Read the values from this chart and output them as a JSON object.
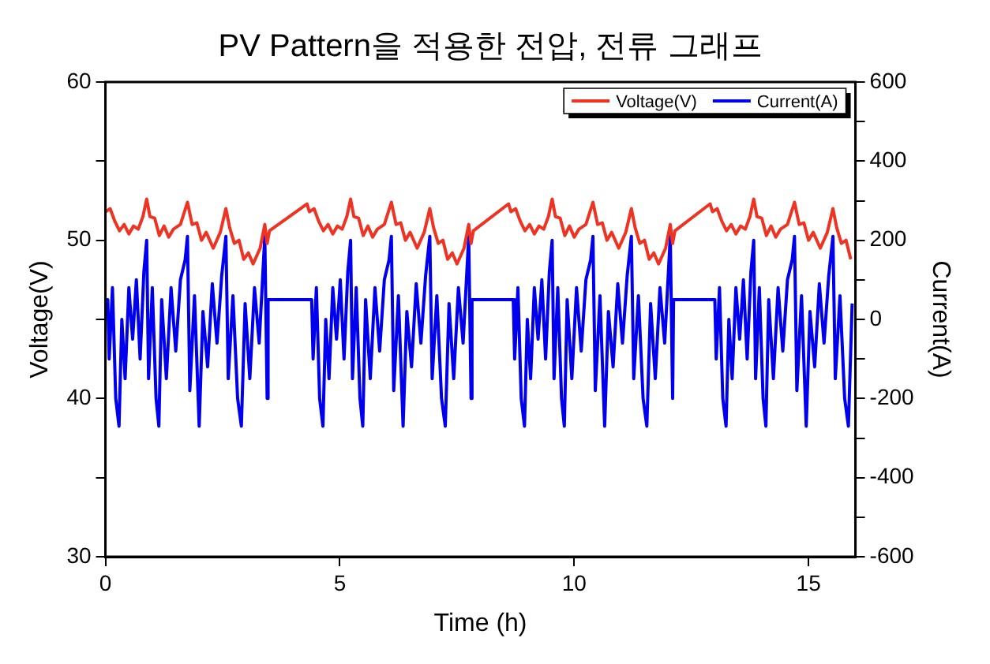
{
  "chart_data": {
    "type": "line",
    "title": "PV Pattern을 적용한 전압, 전류 그래프",
    "xlabel": "Time (h)",
    "ylabel": "Voltage(V)",
    "y2label": "Current(A)",
    "xlim": [
      0,
      16
    ],
    "xticks": [
      0,
      5,
      10,
      15
    ],
    "ylim": [
      30,
      60
    ],
    "yticks": [
      30,
      {
        "value": 35,
        "label": null
      },
      40,
      {
        "value": 45,
        "label": null
      },
      50,
      {
        "value": 55,
        "label": null
      },
      60
    ],
    "y2lim": [
      -600,
      600
    ],
    "y2ticks": [
      -600,
      {
        "value": -500,
        "label": null
      },
      -400,
      {
        "value": -300,
        "label": null
      },
      -200,
      {
        "value": -100,
        "label": null
      },
      0,
      {
        "value": 100,
        "label": null
      },
      200,
      {
        "value": 300,
        "label": null
      },
      400,
      {
        "value": 500,
        "label": null
      },
      600
    ],
    "grid": false,
    "legend": "top right",
    "marker": "none",
    "line_style": "solid",
    "series": [
      {
        "name": "Voltage(V)",
        "color": "#ee3322",
        "x": [
          0,
          0.1,
          0.2,
          0.3,
          0.4,
          0.5,
          0.6,
          0.7,
          0.8,
          0.88,
          0.95,
          1.05,
          1.15,
          1.25,
          1.35,
          1.45,
          1.6,
          1.75,
          1.85,
          1.95,
          2.05,
          2.15,
          2.3,
          2.45,
          2.57,
          2.65,
          2.75,
          2.85,
          2.95,
          3.05,
          3.15,
          3.3,
          3.4,
          3.45,
          3.5,
          4.3,
          4.35,
          4.45,
          4.55,
          4.65,
          4.75,
          4.85,
          4.95,
          5.05,
          5.15,
          5.23,
          5.3,
          5.4,
          5.5,
          5.6,
          5.7,
          5.8,
          5.95,
          6.1,
          6.2,
          6.3,
          6.4,
          6.5,
          6.65,
          6.8,
          6.92,
          7.0,
          7.1,
          7.2,
          7.3,
          7.4,
          7.5,
          7.65,
          7.75,
          7.8,
          7.85,
          8.6,
          8.65,
          8.75,
          8.85,
          8.95,
          9.05,
          9.15,
          9.25,
          9.35,
          9.45,
          9.53,
          9.6,
          9.7,
          9.8,
          9.9,
          10.0,
          10.1,
          10.25,
          10.4,
          10.5,
          10.6,
          10.7,
          10.8,
          10.95,
          11.1,
          11.22,
          11.3,
          11.4,
          11.5,
          11.6,
          11.7,
          11.8,
          11.95,
          12.05,
          12.1,
          12.15,
          12.9,
          12.95,
          13.05,
          13.15,
          13.25,
          13.35,
          13.45,
          13.55,
          13.65,
          13.75,
          13.83,
          13.9,
          14.0,
          14.1,
          14.2,
          14.3,
          14.4,
          14.55,
          14.7,
          14.8,
          14.9,
          15.0,
          15.1,
          15.25,
          15.4,
          15.52,
          15.6,
          15.7,
          15.8,
          15.9
        ],
        "values": [
          51.8,
          52,
          51.2,
          50.6,
          51,
          50.4,
          50.9,
          50.7,
          51.5,
          52.6,
          51.5,
          51.4,
          50.3,
          50.9,
          50.2,
          50.7,
          51,
          52.4,
          51,
          51.1,
          50,
          50.5,
          49.5,
          50.5,
          52,
          50.8,
          49.8,
          50,
          48.8,
          49.2,
          48.5,
          49.5,
          51,
          49.8,
          50.6,
          52.3,
          51.8,
          52,
          51.2,
          50.6,
          51,
          50.4,
          50.9,
          50.7,
          51.5,
          52.6,
          51.5,
          51.4,
          50.3,
          50.9,
          50.2,
          50.7,
          51,
          52.4,
          51,
          51.1,
          50,
          50.5,
          49.5,
          50.5,
          52,
          50.8,
          49.8,
          50,
          48.8,
          49.2,
          48.5,
          49.5,
          51,
          49.8,
          50.6,
          52.3,
          51.8,
          52,
          51.2,
          50.6,
          51,
          50.4,
          50.9,
          50.7,
          51.5,
          52.6,
          51.5,
          51.4,
          50.3,
          50.9,
          50.2,
          50.7,
          51,
          52.4,
          51,
          51.1,
          50,
          50.5,
          49.5,
          50.5,
          52,
          50.8,
          49.8,
          50,
          48.8,
          49.2,
          48.5,
          49.5,
          51,
          49.8,
          50.6,
          52.3,
          51.8,
          52,
          51.2,
          50.6,
          51,
          50.4,
          50.9,
          50.7,
          51.5,
          52.6,
          51.5,
          51.4,
          50.3,
          50.9,
          50.2,
          50.7,
          51,
          52.4,
          51,
          51.1,
          50,
          50.5,
          49.5,
          50.5,
          52,
          50.8,
          49.8,
          50,
          48.8
        ]
      },
      {
        "name": "Current(A)",
        "color": "#0000ee",
        "axis": "y2",
        "x": [
          0,
          0.05,
          0.08,
          0.15,
          0.22,
          0.29,
          0.35,
          0.42,
          0.5,
          0.58,
          0.66,
          0.74,
          0.82,
          0.88,
          0.92,
          1.0,
          1.08,
          1.14,
          1.2,
          1.3,
          1.4,
          1.5,
          1.6,
          1.7,
          1.75,
          1.8,
          1.9,
          2.0,
          2.08,
          2.18,
          2.28,
          2.38,
          2.48,
          2.57,
          2.62,
          2.72,
          2.82,
          2.9,
          2.98,
          3.08,
          3.18,
          3.28,
          3.4,
          3.45,
          3.47,
          4.35,
          4.4,
          4.43,
          4.5,
          4.57,
          4.64,
          4.7,
          4.77,
          4.85,
          4.93,
          5.01,
          5.09,
          5.17,
          5.23,
          5.27,
          5.35,
          5.43,
          5.49,
          5.55,
          5.65,
          5.75,
          5.85,
          5.95,
          6.05,
          6.1,
          6.15,
          6.25,
          6.35,
          6.43,
          6.53,
          6.63,
          6.73,
          6.83,
          6.92,
          6.97,
          7.07,
          7.17,
          7.25,
          7.33,
          7.43,
          7.53,
          7.63,
          7.75,
          7.8,
          7.82,
          8.65,
          8.7,
          8.73,
          8.8,
          8.87,
          8.94,
          9.0,
          9.07,
          9.15,
          9.23,
          9.31,
          9.39,
          9.47,
          9.53,
          9.57,
          9.65,
          9.73,
          9.79,
          9.85,
          9.95,
          10.05,
          10.15,
          10.25,
          10.35,
          10.4,
          10.45,
          10.55,
          10.65,
          10.73,
          10.83,
          10.93,
          11.03,
          11.13,
          11.22,
          11.27,
          11.37,
          11.47,
          11.55,
          11.63,
          11.73,
          11.83,
          11.93,
          12.05,
          12.1,
          12.12,
          12.95,
          13.0,
          13.03,
          13.1,
          13.17,
          13.24,
          13.3,
          13.37,
          13.45,
          13.53,
          13.61,
          13.69,
          13.77,
          13.83,
          13.87,
          13.95,
          14.03,
          14.09,
          14.15,
          14.25,
          14.35,
          14.45,
          14.55,
          14.65,
          14.7,
          14.75,
          14.85,
          14.95,
          15.03,
          15.13,
          15.23,
          15.33,
          15.43,
          15.52,
          15.57,
          15.67,
          15.77,
          15.85,
          15.93
        ],
        "values": [
          50,
          50,
          -100,
          80,
          -200,
          -270,
          0,
          -150,
          80,
          -50,
          100,
          -100,
          120,
          200,
          -150,
          80,
          -200,
          -270,
          50,
          -150,
          80,
          -80,
          100,
          150,
          210,
          -180,
          60,
          -270,
          20,
          -120,
          90,
          -60,
          110,
          210,
          -150,
          60,
          -200,
          -270,
          40,
          -150,
          80,
          -60,
          210,
          -200,
          50,
          50,
          50,
          -100,
          80,
          -200,
          -270,
          0,
          -150,
          80,
          -50,
          100,
          -100,
          120,
          200,
          -150,
          80,
          -200,
          -270,
          50,
          -150,
          80,
          -80,
          100,
          150,
          210,
          -180,
          60,
          -270,
          20,
          -120,
          90,
          -60,
          110,
          210,
          -150,
          60,
          -200,
          -270,
          40,
          -150,
          80,
          -60,
          210,
          -200,
          50,
          50,
          50,
          -100,
          80,
          -200,
          -270,
          0,
          -150,
          80,
          -50,
          100,
          -100,
          120,
          200,
          -150,
          80,
          -200,
          -270,
          50,
          -150,
          80,
          -80,
          100,
          150,
          210,
          -180,
          60,
          -270,
          20,
          -120,
          90,
          -60,
          110,
          210,
          -150,
          60,
          -200,
          -270,
          40,
          -150,
          80,
          -60,
          210,
          -200,
          50,
          50,
          50,
          -100,
          80,
          -200,
          -270,
          0,
          -150,
          80,
          -50,
          100,
          -100,
          120,
          200,
          -150,
          80,
          -200,
          -270,
          50,
          -150,
          80,
          -80,
          100,
          150,
          210,
          -180,
          60,
          -270,
          20,
          -120,
          90,
          -60,
          110,
          210,
          -150,
          60,
          -200,
          -270,
          40
        ]
      }
    ]
  }
}
